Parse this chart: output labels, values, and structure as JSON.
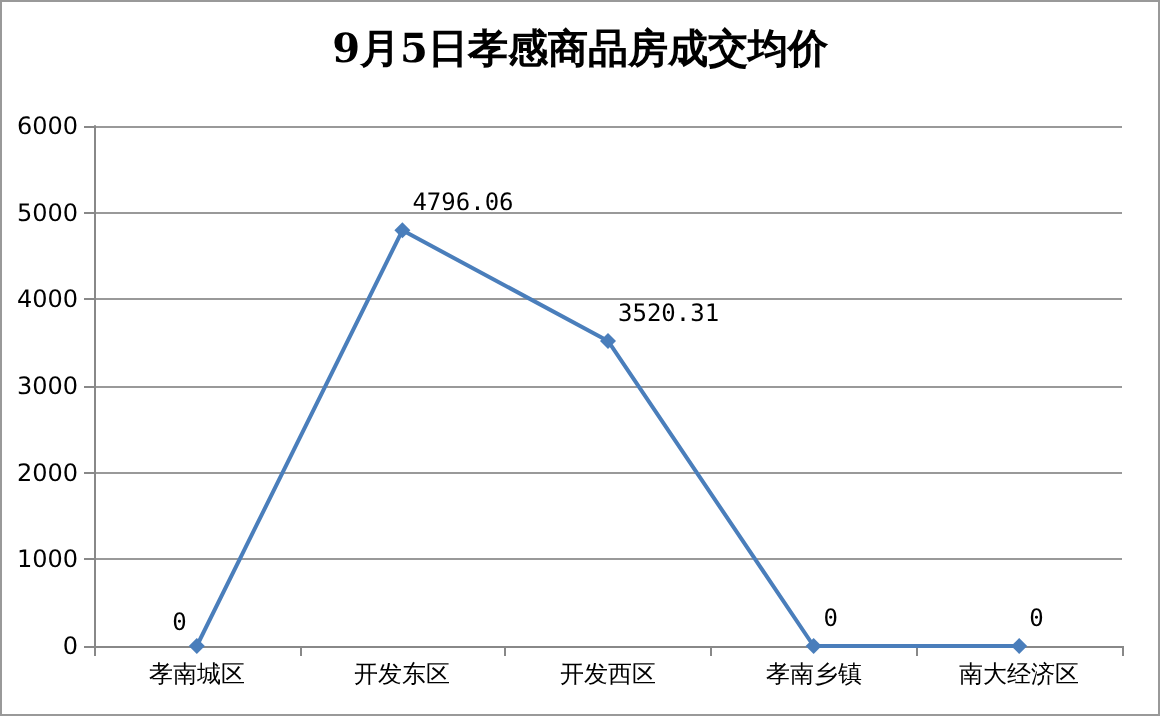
{
  "chart_data": {
    "type": "line",
    "title": "9月5日孝感商品房成交均价",
    "categories": [
      "孝南城区",
      "开发东区",
      "开发西区",
      "孝南乡镇",
      "南大经济区"
    ],
    "series": [
      {
        "color": "#4a7ebb",
        "values": [
          0,
          4796.06,
          3520.31,
          0,
          0
        ]
      }
    ],
    "ylim": [
      0,
      6000
    ],
    "yticks": [
      0,
      1000,
      2000,
      3000,
      4000,
      5000,
      6000
    ],
    "grid": "y",
    "marker": "diamond",
    "line_style": "solid",
    "data_labels": true
  }
}
